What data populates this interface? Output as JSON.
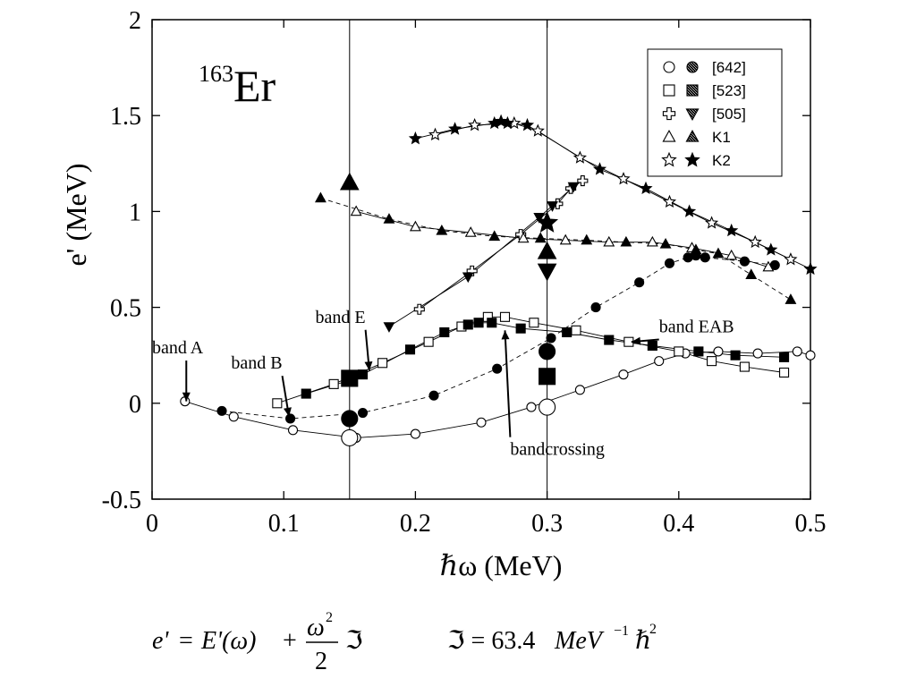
{
  "chart_data": {
    "type": "scatter",
    "title": "",
    "label_mass": "163",
    "label_element": "Er",
    "xlabel": "ℏω (MeV)",
    "ylabel": "e' (MeV)",
    "xlim": [
      0,
      0.5
    ],
    "ylim": [
      -0.5,
      2
    ],
    "x_ticks": [
      "0",
      "0.1",
      "0.2",
      "0.3",
      "0.4",
      "0.5"
    ],
    "x_tick_values": [
      0,
      0.1,
      0.2,
      0.3,
      0.4,
      0.5
    ],
    "y_ticks": [
      "-0.5",
      "0",
      "0.5",
      "1",
      "1.5",
      "2"
    ],
    "y_tick_values": [
      -0.5,
      0,
      0.5,
      1,
      1.5,
      2
    ],
    "vlines": [
      0.15,
      0.3
    ],
    "legend": {
      "placement": "top-right",
      "entries": [
        {
          "label": "[642]",
          "open_marker": "circle",
          "filled_marker": "circle-hatched"
        },
        {
          "label": "[523]",
          "open_marker": "square",
          "filled_marker": "square-hatched"
        },
        {
          "label": "[505]",
          "open_marker": "plus",
          "filled_marker": "triangle-down-hatched"
        },
        {
          "label": "K1",
          "open_marker": "triangle-up",
          "filled_marker": "triangle-up-hatched"
        },
        {
          "label": "K2",
          "open_marker": "star",
          "filled_marker": "star-filled"
        }
      ]
    },
    "series": [
      {
        "marker": "circle",
        "filled": false,
        "line": "solid",
        "points": [
          [
            0.025,
            0.01
          ],
          [
            0.062,
            -0.07
          ],
          [
            0.107,
            -0.14
          ],
          [
            0.155,
            -0.18
          ],
          [
            0.2,
            -0.16
          ],
          [
            0.25,
            -0.1
          ],
          [
            0.288,
            -0.02
          ],
          [
            0.325,
            0.07
          ],
          [
            0.358,
            0.15
          ],
          [
            0.385,
            0.22
          ],
          [
            0.405,
            0.26
          ],
          [
            0.43,
            0.27
          ],
          [
            0.46,
            0.26
          ],
          [
            0.49,
            0.27
          ],
          [
            0.5,
            0.25
          ]
        ]
      },
      {
        "marker": "circle",
        "filled": true,
        "line": "dashed",
        "points": [
          [
            0.053,
            -0.04
          ],
          [
            0.105,
            -0.08
          ],
          [
            0.16,
            -0.05
          ],
          [
            0.214,
            0.04
          ],
          [
            0.262,
            0.18
          ],
          [
            0.303,
            0.34
          ],
          [
            0.337,
            0.5
          ],
          [
            0.37,
            0.63
          ],
          [
            0.393,
            0.73
          ],
          [
            0.407,
            0.76
          ],
          [
            0.413,
            0.77
          ],
          [
            0.42,
            0.76
          ],
          [
            0.45,
            0.74
          ],
          [
            0.473,
            0.72
          ]
        ]
      },
      {
        "marker": "square",
        "filled": false,
        "line": "solid",
        "points": [
          [
            0.095,
            0.0
          ],
          [
            0.138,
            0.1
          ],
          [
            0.175,
            0.21
          ],
          [
            0.21,
            0.32
          ],
          [
            0.235,
            0.4
          ],
          [
            0.255,
            0.45
          ],
          [
            0.268,
            0.45
          ],
          [
            0.29,
            0.42
          ],
          [
            0.322,
            0.38
          ],
          [
            0.362,
            0.32
          ],
          [
            0.4,
            0.27
          ],
          [
            0.425,
            0.22
          ],
          [
            0.45,
            0.19
          ],
          [
            0.48,
            0.16
          ]
        ]
      },
      {
        "marker": "square",
        "filled": true,
        "line": "solid",
        "points": [
          [
            0.117,
            0.05
          ],
          [
            0.15,
            0.12
          ],
          [
            0.16,
            0.15
          ],
          [
            0.196,
            0.28
          ],
          [
            0.222,
            0.37
          ],
          [
            0.24,
            0.41
          ],
          [
            0.248,
            0.42
          ],
          [
            0.258,
            0.42
          ],
          [
            0.28,
            0.39
          ],
          [
            0.315,
            0.37
          ],
          [
            0.347,
            0.33
          ],
          [
            0.38,
            0.3
          ],
          [
            0.415,
            0.27
          ],
          [
            0.443,
            0.25
          ],
          [
            0.48,
            0.24
          ]
        ]
      },
      {
        "marker": "plus",
        "filled": false,
        "line": "solid",
        "points": [
          [
            0.203,
            0.49
          ],
          [
            0.243,
            0.69
          ],
          [
            0.28,
            0.88
          ],
          [
            0.308,
            1.04
          ],
          [
            0.318,
            1.12
          ],
          [
            0.327,
            1.16
          ]
        ]
      },
      {
        "marker": "triangle-down",
        "filled": true,
        "line": "solid",
        "points": [
          [
            0.18,
            0.4
          ],
          [
            0.24,
            0.66
          ],
          [
            0.294,
            0.97
          ],
          [
            0.304,
            1.03
          ],
          [
            0.32,
            1.13
          ]
        ]
      },
      {
        "marker": "triangle-up",
        "filled": false,
        "line": "solid",
        "points": [
          [
            0.155,
            1.0
          ],
          [
            0.2,
            0.92
          ],
          [
            0.242,
            0.89
          ],
          [
            0.282,
            0.86
          ],
          [
            0.314,
            0.85
          ],
          [
            0.347,
            0.84
          ],
          [
            0.38,
            0.84
          ],
          [
            0.41,
            0.81
          ],
          [
            0.44,
            0.77
          ],
          [
            0.468,
            0.71
          ]
        ]
      },
      {
        "marker": "triangle-up",
        "filled": true,
        "line": "dashed",
        "points": [
          [
            0.128,
            1.07
          ],
          [
            0.18,
            0.96
          ],
          [
            0.22,
            0.9
          ],
          [
            0.26,
            0.87
          ],
          [
            0.295,
            0.86
          ],
          [
            0.33,
            0.85
          ],
          [
            0.36,
            0.84
          ],
          [
            0.39,
            0.83
          ],
          [
            0.413,
            0.8
          ],
          [
            0.43,
            0.78
          ],
          [
            0.455,
            0.67
          ],
          [
            0.485,
            0.54
          ]
        ]
      },
      {
        "marker": "star",
        "filled": false,
        "line": "solid",
        "points": [
          [
            0.215,
            1.4
          ],
          [
            0.245,
            1.45
          ],
          [
            0.275,
            1.46
          ],
          [
            0.293,
            1.42
          ],
          [
            0.325,
            1.28
          ],
          [
            0.358,
            1.17
          ],
          [
            0.393,
            1.05
          ],
          [
            0.425,
            0.94
          ],
          [
            0.458,
            0.84
          ],
          [
            0.485,
            0.75
          ]
        ]
      },
      {
        "marker": "star",
        "filled": true,
        "line": "solid",
        "points": [
          [
            0.2,
            1.38
          ],
          [
            0.23,
            1.43
          ],
          [
            0.26,
            1.46
          ],
          [
            0.265,
            1.47
          ],
          [
            0.27,
            1.46
          ],
          [
            0.285,
            1.45
          ],
          [
            0.34,
            1.22
          ],
          [
            0.375,
            1.12
          ],
          [
            0.408,
            1.0
          ],
          [
            0.44,
            0.9
          ],
          [
            0.47,
            0.8
          ],
          [
            0.5,
            0.7
          ]
        ]
      }
    ],
    "large_markers": [
      {
        "x": 0.15,
        "y": -0.18,
        "marker": "circle",
        "filled": false
      },
      {
        "x": 0.3,
        "y": -0.02,
        "marker": "circle",
        "filled": false
      },
      {
        "x": 0.15,
        "y": -0.08,
        "marker": "circle",
        "filled": true
      },
      {
        "x": 0.3,
        "y": 0.27,
        "marker": "circle",
        "filled": true
      },
      {
        "x": 0.15,
        "y": 0.13,
        "marker": "square",
        "filled": true
      },
      {
        "x": 0.3,
        "y": 0.14,
        "marker": "square",
        "filled": true
      },
      {
        "x": 0.15,
        "y": 1.15,
        "marker": "triangle-up",
        "filled": true
      },
      {
        "x": 0.3,
        "y": 0.79,
        "marker": "triangle-up",
        "filled": true
      },
      {
        "x": 0.3,
        "y": 0.69,
        "marker": "triangle-down",
        "filled": true
      },
      {
        "x": 0.3,
        "y": 0.94,
        "marker": "star",
        "filled": true
      }
    ],
    "annotations": [
      {
        "text": "band A",
        "tx": 0.0,
        "ty": 0.26,
        "ax": 0.026,
        "ay": 0.01
      },
      {
        "text": "band B",
        "tx": 0.06,
        "ty": 0.18,
        "ax": 0.104,
        "ay": -0.07
      },
      {
        "text": "band E",
        "tx": 0.124,
        "ty": 0.42,
        "ax": 0.165,
        "ay": 0.17
      },
      {
        "text": "band EAB",
        "tx": 0.385,
        "ty": 0.37,
        "ax": 0.364,
        "ay": 0.32
      },
      {
        "text": "bandcrossing",
        "tx": 0.272,
        "ty": -0.27,
        "ax": 0.268,
        "ay": 0.38
      }
    ]
  },
  "formula": {
    "lhs": "e'",
    "eq": "=",
    "e_omega": "E'(ω)",
    "plus": "+",
    "omega": "ω",
    "sq": "2",
    "two": "2",
    "moi": "ℑ",
    "moi_value": "ℑ = 63.4",
    "unit": "MeV",
    "exp_unit": "−1",
    "hbar": "ℏ",
    "exp_hbar": "2"
  }
}
